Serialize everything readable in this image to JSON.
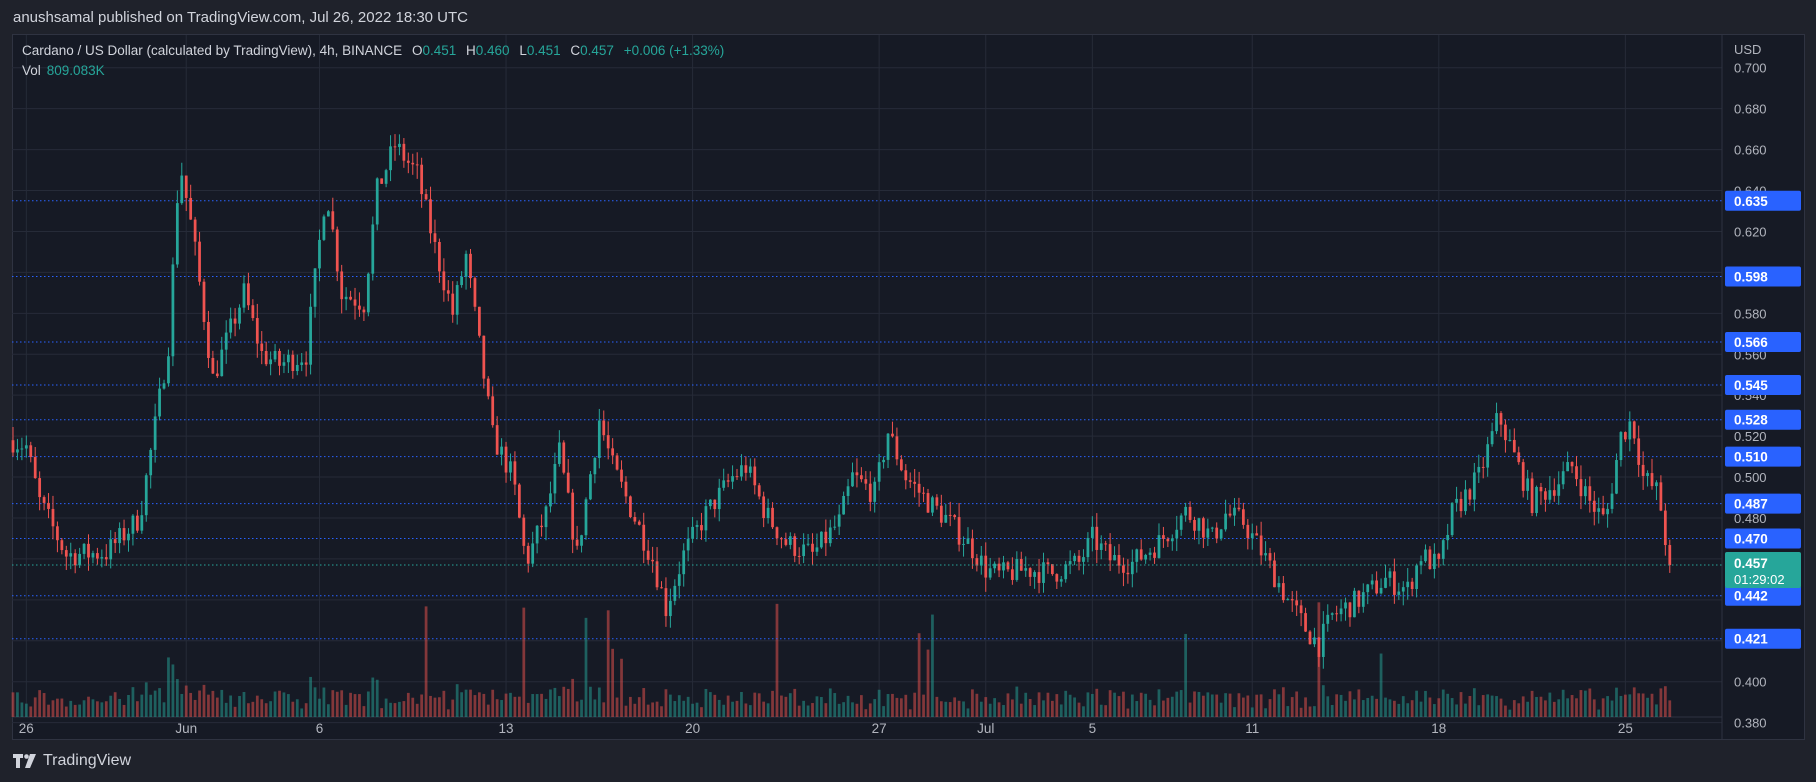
{
  "header": {
    "published": "anushsamal published on TradingView.com, Jul 26, 2022 18:30 UTC"
  },
  "legend": {
    "symbol": "Cardano / US Dollar (calculated by TradingView), 4h, BINANCE",
    "o_label": "O",
    "o": "0.451",
    "h_label": "H",
    "h": "0.460",
    "l_label": "L",
    "l": "0.451",
    "c_label": "C",
    "c": "0.457",
    "change": "+0.006 (+1.33%)",
    "vol_label": "Vol",
    "vol": "809.083K"
  },
  "footer": {
    "brand": "TradingView"
  },
  "colors": {
    "up": "#26a69a",
    "down": "#ef5350",
    "level": "#2962ff",
    "grid": "#262b38",
    "bg": "#161a25"
  },
  "chart_data": {
    "type": "candlestick",
    "currency_label": "USD",
    "price_axis": {
      "range": [
        0.372,
        0.716
      ],
      "ticks": [
        "0.700",
        "0.680",
        "0.660",
        "0.640",
        "0.620",
        "0.600",
        "0.580",
        "0.560",
        "0.540",
        "0.520",
        "0.500",
        "0.480",
        "0.460",
        "0.440",
        "0.420",
        "0.400",
        "0.380"
      ]
    },
    "x_labels": [
      "26",
      "Jun",
      "6",
      "13",
      "20",
      "27",
      "Jul",
      "5",
      "11",
      "18",
      "25"
    ],
    "x_label_dates": [
      "2022-05-26",
      "2022-06-01",
      "2022-06-06",
      "2022-06-13",
      "2022-06-20",
      "2022-06-27",
      "2022-07-01",
      "2022-07-05",
      "2022-07-11",
      "2022-07-18",
      "2022-07-25"
    ],
    "levels": [
      "0.635",
      "0.598",
      "0.566",
      "0.545",
      "0.528",
      "0.510",
      "0.487",
      "0.470",
      "0.442",
      "0.421"
    ],
    "last_price": {
      "value": "0.457",
      "countdown": "01:29:02"
    },
    "price_path": [
      [
        "2022-05-25T12:00",
        0.518
      ],
      [
        "2022-05-26T00:00",
        0.515
      ],
      [
        "2022-05-26T12:00",
        0.488
      ],
      [
        "2022-05-27T12:00",
        0.462
      ],
      [
        "2022-05-29T00:00",
        0.463
      ],
      [
        "2022-05-30T06:00",
        0.48
      ],
      [
        "2022-05-30T20:00",
        0.525
      ],
      [
        "2022-05-31T08:00",
        0.565
      ],
      [
        "2022-05-31T18:00",
        0.655
      ],
      [
        "2022-06-01T06:00",
        0.618
      ],
      [
        "2022-06-02T00:00",
        0.548
      ],
      [
        "2022-06-03T04:00",
        0.59
      ],
      [
        "2022-06-03T20:00",
        0.56
      ],
      [
        "2022-06-04T12:00",
        0.555
      ],
      [
        "2022-06-05T12:00",
        0.56
      ],
      [
        "2022-06-06T06:00",
        0.642
      ],
      [
        "2022-06-06T20:00",
        0.59
      ],
      [
        "2022-06-07T16:00",
        0.585
      ],
      [
        "2022-06-08T04:00",
        0.64
      ],
      [
        "2022-06-08T20:00",
        0.662
      ],
      [
        "2022-06-09T16:00",
        0.648
      ],
      [
        "2022-06-10T08:00",
        0.612
      ],
      [
        "2022-06-11T00:00",
        0.58
      ],
      [
        "2022-06-11T12:00",
        0.608
      ],
      [
        "2022-06-12T12:00",
        0.52
      ],
      [
        "2022-06-13T06:00",
        0.5
      ],
      [
        "2022-06-13T18:00",
        0.458
      ],
      [
        "2022-06-14T12:00",
        0.482
      ],
      [
        "2022-06-15T00:00",
        0.512
      ],
      [
        "2022-06-15T16:00",
        0.462
      ],
      [
        "2022-06-16T12:00",
        0.528
      ],
      [
        "2022-06-17T00:00",
        0.505
      ],
      [
        "2022-06-17T12:00",
        0.49
      ],
      [
        "2022-06-18T12:00",
        0.46
      ],
      [
        "2022-06-19T00:00",
        0.436
      ],
      [
        "2022-06-19T16:00",
        0.462
      ],
      [
        "2022-06-20T12:00",
        0.482
      ],
      [
        "2022-06-21T12:00",
        0.5
      ],
      [
        "2022-06-22T00:00",
        0.505
      ],
      [
        "2022-06-22T18:00",
        0.482
      ],
      [
        "2022-06-23T12:00",
        0.468
      ],
      [
        "2022-06-24T12:00",
        0.462
      ],
      [
        "2022-06-25T12:00",
        0.478
      ],
      [
        "2022-06-26T00:00",
        0.5
      ],
      [
        "2022-06-26T20:00",
        0.492
      ],
      [
        "2022-06-27T08:00",
        0.522
      ],
      [
        "2022-06-28T00:00",
        0.5
      ],
      [
        "2022-06-28T20:00",
        0.488
      ],
      [
        "2022-06-29T12:00",
        0.48
      ],
      [
        "2022-06-30T12:00",
        0.465
      ],
      [
        "2022-07-01T00:00",
        0.455
      ],
      [
        "2022-07-01T12:00",
        0.452
      ],
      [
        "2022-07-02T12:00",
        0.455
      ],
      [
        "2022-07-03T12:00",
        0.453
      ],
      [
        "2022-07-04T12:00",
        0.458
      ],
      [
        "2022-07-05T00:00",
        0.47
      ],
      [
        "2022-07-05T16:00",
        0.46
      ],
      [
        "2022-07-06T12:00",
        0.458
      ],
      [
        "2022-07-07T12:00",
        0.468
      ],
      [
        "2022-07-08T12:00",
        0.483
      ],
      [
        "2022-07-09T00:00",
        0.478
      ],
      [
        "2022-07-09T12:00",
        0.47
      ],
      [
        "2022-07-10T00:00",
        0.482
      ],
      [
        "2022-07-10T16:00",
        0.478
      ],
      [
        "2022-07-11T12:00",
        0.46
      ],
      [
        "2022-07-12T08:00",
        0.44
      ],
      [
        "2022-07-13T00:00",
        0.426
      ],
      [
        "2022-07-13T12:00",
        0.418
      ],
      [
        "2022-07-14T00:00",
        0.432
      ],
      [
        "2022-07-15T00:00",
        0.44
      ],
      [
        "2022-07-16T00:00",
        0.45
      ],
      [
        "2022-07-16T20:00",
        0.445
      ],
      [
        "2022-07-17T08:00",
        0.462
      ],
      [
        "2022-07-18T00:00",
        0.456
      ],
      [
        "2022-07-18T12:00",
        0.482
      ],
      [
        "2022-07-19T12:00",
        0.5
      ],
      [
        "2022-07-20T06:00",
        0.53
      ],
      [
        "2022-07-20T20:00",
        0.51
      ],
      [
        "2022-07-21T12:00",
        0.488
      ],
      [
        "2022-07-22T12:00",
        0.498
      ],
      [
        "2022-07-23T00:00",
        0.505
      ],
      [
        "2022-07-23T16:00",
        0.488
      ],
      [
        "2022-07-24T06:00",
        0.478
      ],
      [
        "2022-07-24T20:00",
        0.52
      ],
      [
        "2022-07-25T06:00",
        0.528
      ],
      [
        "2022-07-25T16:00",
        0.5
      ],
      [
        "2022-07-26T06:00",
        0.492
      ],
      [
        "2022-07-26T12:00",
        0.47
      ],
      [
        "2022-07-26T18:00",
        0.457
      ]
    ]
  }
}
